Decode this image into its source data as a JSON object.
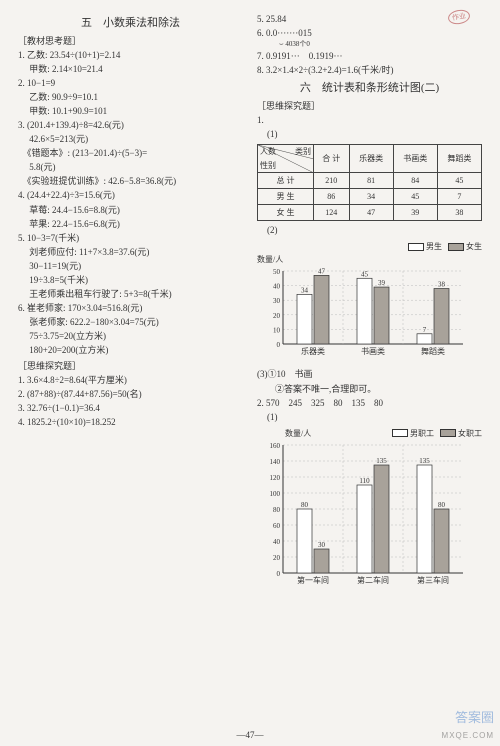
{
  "left": {
    "heading": "五　小数乘法和除法",
    "section1_label": "［教材思考题］",
    "s1": [
      "1. 乙数: 23.54÷(10+1)=2.14",
      "　 甲数: 2.14×10=21.4",
      "2. 10−1=9",
      "　 乙数: 90.9÷9=10.1",
      "　 甲数: 10.1+90.9=101",
      "3. (201.4+139.4)÷8=42.6(元)",
      "　 42.6×5=213(元)",
      "　《错题本》: (213−201.4)÷(5−3)=",
      "　 5.8(元)",
      "　《实验班提优训练》: 42.6−5.8=36.8(元)",
      "4. (24.4+22.4)÷3=15.6(元)",
      "　 草莓: 24.4−15.6=8.8(元)",
      "　 苹果: 22.4−15.6=6.8(元)",
      "5. 10−3=7(千米)",
      "　 刘老师应付: 11+7×3.8=37.6(元)",
      "　 30−11=19(元)",
      "　 19÷3.8=5(千米)",
      "　 王老师乘出租车行驶了: 5+3=8(千米)",
      "6. 崔老师家: 170×3.04=516.8(元)",
      "　 张老师家: 622.2−180×3.04=75(元)",
      "　 75÷3.75=20(立方米)",
      "　 180+20=200(立方米)"
    ],
    "section2_label": "［思维探究题］",
    "s2": [
      "1. 3.6×4.8÷2=8.64(平方厘米)",
      "2. (87+88)÷(87.44+87.56)=50(名)",
      "3. 32.76÷(1−0.1)=36.4",
      "4. 1825.2÷(10×10)=18.252"
    ]
  },
  "right": {
    "r_top": [
      "5. 25.84",
      "6. 0.0·······015",
      "7. 0.9191···　0.1919···",
      "8. 3.2×1.4×2÷(3.2+2.4)=1.6(千米/时)"
    ],
    "zeros_note": "4038个0",
    "heading": "六　统计表和条形统计图(二)",
    "section_label": "［思维探究题］",
    "item1": "1.",
    "item1_sub": "(1)",
    "table": {
      "diag_col": "人数",
      "diag_row": "性别",
      "diag_group": "类别",
      "cols": [
        "合 计",
        "乐器类",
        "书画类",
        "舞蹈类"
      ],
      "rows": [
        {
          "label": "总 计",
          "cells": [
            "210",
            "81",
            "84",
            "45"
          ]
        },
        {
          "label": "男 生",
          "cells": [
            "86",
            "34",
            "45",
            "7"
          ]
        },
        {
          "label": "女 生",
          "cells": [
            "124",
            "47",
            "39",
            "38"
          ]
        }
      ]
    },
    "item1_sub2": "(2)",
    "chart1": {
      "ylabel": "数量/人",
      "legend": [
        {
          "label": "男生",
          "fill": "#ffffff"
        },
        {
          "label": "女生",
          "fill": "#a8a29a"
        }
      ],
      "ylim_max": 50,
      "ytick_step": 10,
      "grid_color": "#bbb",
      "bar_border": "#333",
      "categories": [
        "乐器类",
        "书画类",
        "舞蹈类"
      ],
      "series": [
        {
          "label": "男生",
          "fill": "#ffffff",
          "values": [
            34,
            45,
            7
          ]
        },
        {
          "label": "女生",
          "fill": "#a8a29a",
          "values": [
            47,
            39,
            38
          ]
        }
      ]
    },
    "item1_sub3_a": "(3)①10　书画",
    "item1_sub3_b": "　　②答案不唯一,合理即可。",
    "item2_head": "2. 570　245　325　80　135　80",
    "item2_sub": "(1)",
    "chart2": {
      "ylabel": "数量/人",
      "legend": [
        {
          "label": "男职工",
          "fill": "#ffffff"
        },
        {
          "label": "女职工",
          "fill": "#a8a29a"
        }
      ],
      "ylim_max": 160,
      "ytick_step": 20,
      "grid_color": "#bbb",
      "bar_border": "#333",
      "categories": [
        "第一车间",
        "第二车间",
        "第三车间"
      ],
      "series": [
        {
          "label": "男职工",
          "fill": "#ffffff",
          "values": [
            80,
            110,
            135
          ]
        },
        {
          "label": "女职工",
          "fill": "#a8a29a",
          "values": [
            30,
            135,
            80
          ]
        }
      ]
    }
  },
  "page_num": "—47—",
  "watermark": "答案圈",
  "watermark2": "MXQE.COM"
}
